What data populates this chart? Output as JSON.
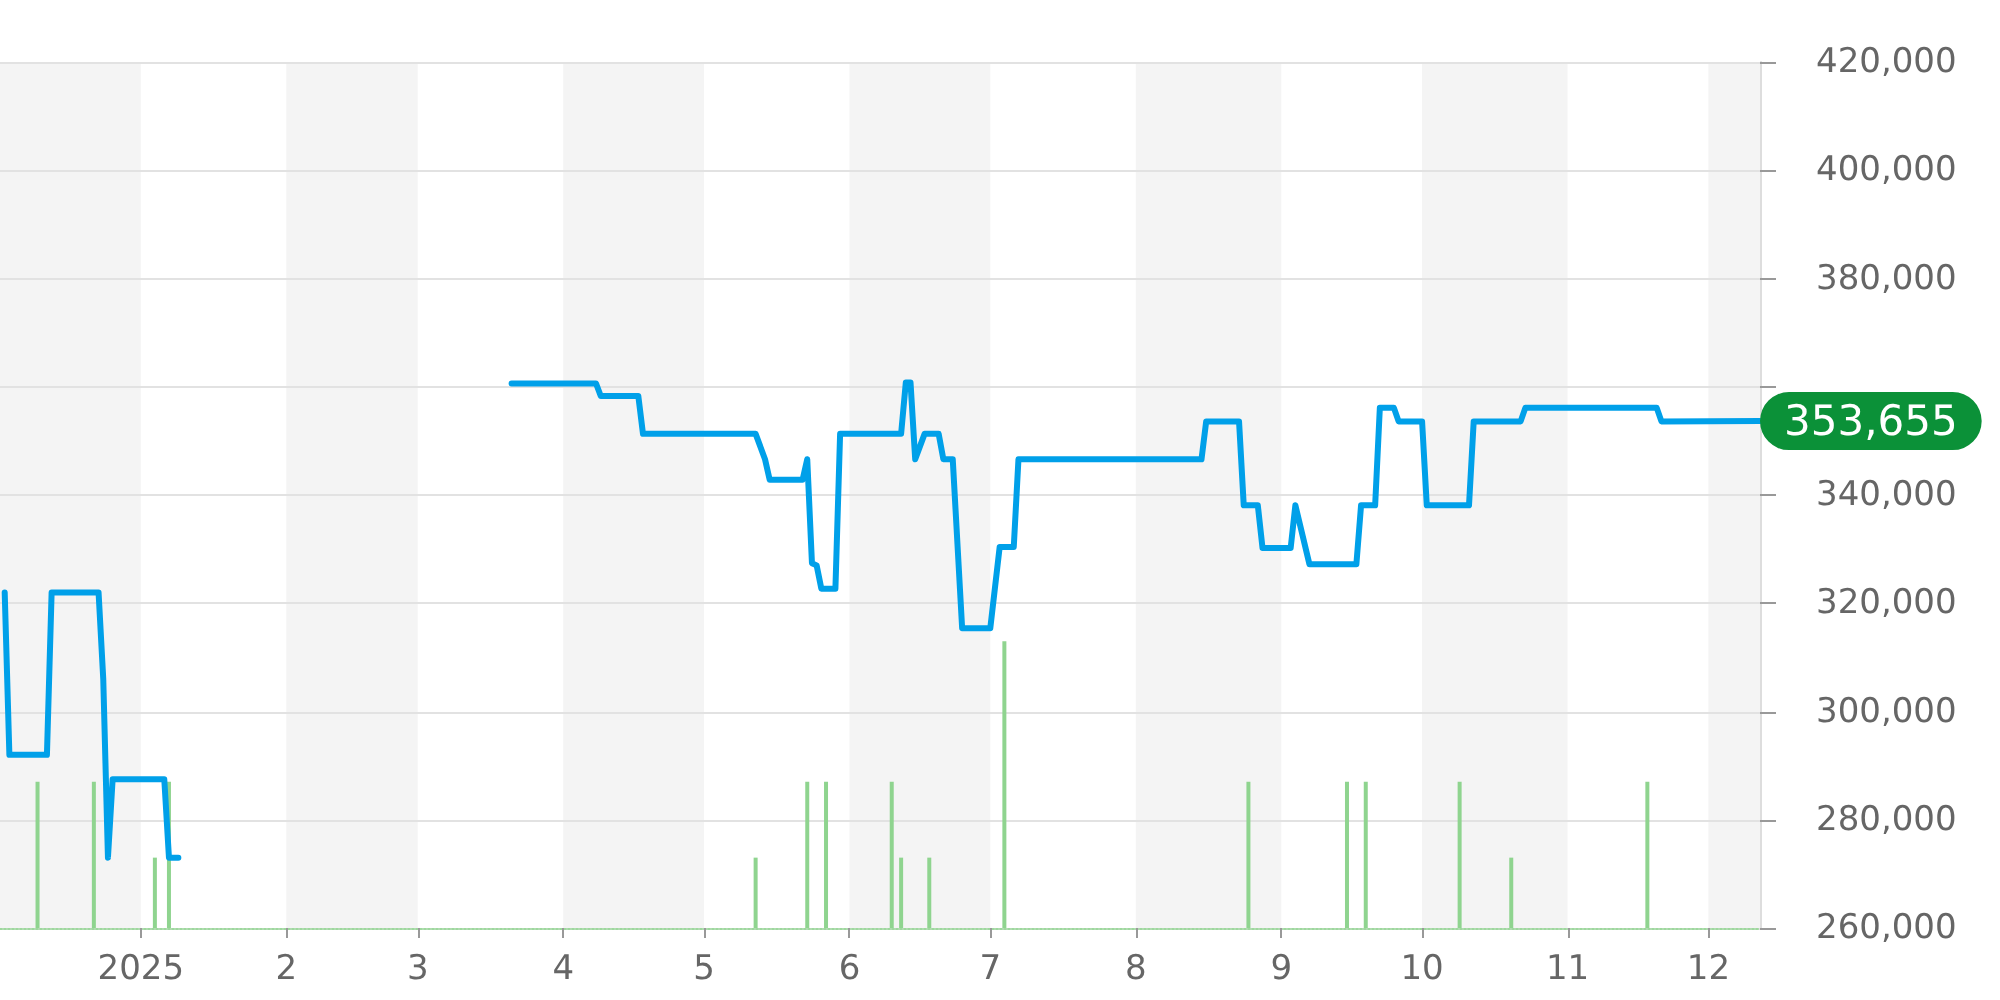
{
  "chart_data": {
    "type": "line",
    "xlim": [
      "2024-12-02",
      "2025-12-12"
    ],
    "xticks": [
      {
        "value": "2025-01-01",
        "label": "2025"
      },
      {
        "value": "2025-02-01",
        "label": "2"
      },
      {
        "value": "2025-03-01",
        "label": "3"
      },
      {
        "value": "2025-04-01",
        "label": "4"
      },
      {
        "value": "2025-05-01",
        "label": "5"
      },
      {
        "value": "2025-06-01",
        "label": "6"
      },
      {
        "value": "2025-07-01",
        "label": "7"
      },
      {
        "value": "2025-08-01",
        "label": "8"
      },
      {
        "value": "2025-09-01",
        "label": "9"
      },
      {
        "value": "2025-10-01",
        "label": "10"
      },
      {
        "value": "2025-11-01",
        "label": "11"
      },
      {
        "value": "2025-12-01",
        "label": "12"
      }
    ],
    "ylim": [
      260000,
      420000
    ],
    "yticks": [
      {
        "value": 260000,
        "label": "260,000"
      },
      {
        "value": 280000,
        "label": "280,000"
      },
      {
        "value": 300000,
        "label": "300,000"
      },
      {
        "value": 320000,
        "label": "320,000"
      },
      {
        "value": 340000,
        "label": "340,000"
      },
      {
        "value": 360000,
        "label": null
      },
      {
        "value": 380000,
        "label": "380,000"
      },
      {
        "value": 400000,
        "label": "400,000"
      },
      {
        "value": 420000,
        "label": "420,000"
      }
    ],
    "grid": "y",
    "marker": "none",
    "line_style": "solid",
    "bands": [
      {
        "axis": "x",
        "from": "2024-12-02",
        "to": "2025-01-01",
        "color": "#f4f4f4"
      },
      {
        "axis": "x",
        "from": "2025-02-01",
        "to": "2025-03-01",
        "color": "#f4f4f4"
      },
      {
        "axis": "x",
        "from": "2025-04-01",
        "to": "2025-05-01",
        "color": "#f4f4f4"
      },
      {
        "axis": "x",
        "from": "2025-06-01",
        "to": "2025-07-01",
        "color": "#f4f4f4"
      },
      {
        "axis": "x",
        "from": "2025-08-01",
        "to": "2025-09-01",
        "color": "#f4f4f4"
      },
      {
        "axis": "x",
        "from": "2025-10-01",
        "to": "2025-11-01",
        "color": "#f4f4f4"
      },
      {
        "axis": "x",
        "from": "2025-12-01",
        "to": "2025-12-12",
        "color": "#f4f4f4"
      }
    ],
    "series": [
      {
        "type": "bar",
        "color": "#8fd48f",
        "x": [
          "2024-12-10",
          "2024-12-22",
          "2025-01-04",
          "2025-01-07",
          "2025-05-12",
          "2025-05-23",
          "2025-05-27",
          "2025-06-10",
          "2025-06-12",
          "2025-06-18",
          "2025-07-04",
          "2025-08-25",
          "2025-09-15",
          "2025-09-19",
          "2025-10-09",
          "2025-10-20",
          "2025-11-18"
        ],
        "values": [
          287000,
          287000,
          273000,
          287000,
          273000,
          287000,
          287000,
          287000,
          273000,
          273000,
          313000,
          287000,
          287000,
          287000,
          287000,
          273000,
          287000
        ]
      },
      {
        "color": "#00a0e9",
        "x": [
          "2024-12-03",
          "2024-12-04",
          "2024-12-12",
          "2024-12-13",
          "2024-12-23",
          "2024-12-24",
          "2024-12-25",
          "2024-12-26",
          "2025-01-06",
          "2025-01-07",
          "2025-01-09",
          "2025-02-15",
          "2025-03-21",
          "2025-04-08",
          "2025-04-09",
          "2025-04-17",
          "2025-04-18",
          "2025-05-12",
          "2025-05-14",
          "2025-05-15",
          "2025-05-22",
          "2025-05-23",
          "2025-05-24",
          "2025-05-25",
          "2025-05-26",
          "2025-05-29",
          "2025-05-30",
          "2025-06-12",
          "2025-06-13",
          "2025-06-14",
          "2025-06-15",
          "2025-06-17",
          "2025-06-20",
          "2025-06-21",
          "2025-06-23",
          "2025-06-25",
          "2025-07-01",
          "2025-07-03",
          "2025-07-06",
          "2025-07-07",
          "2025-08-15",
          "2025-08-16",
          "2025-08-23",
          "2025-08-24",
          "2025-08-27",
          "2025-08-28",
          "2025-09-03",
          "2025-09-04",
          "2025-09-07",
          "2025-09-17",
          "2025-09-18",
          "2025-09-21",
          "2025-09-22",
          "2025-09-25",
          "2025-09-26",
          "2025-10-01",
          "2025-10-02",
          "2025-10-11",
          "2025-10-12",
          "2025-10-22",
          "2025-10-23",
          "2025-11-20",
          "2025-11-21",
          "2025-12-12"
        ],
        "values": [
          322000,
          292000,
          292000,
          322000,
          322000,
          306000,
          273000,
          287500,
          287500,
          273000,
          273000,
          null,
          360600,
          360600,
          358300,
          358300,
          351300,
          351300,
          346600,
          342800,
          342800,
          346600,
          327400,
          327000,
          322700,
          322700,
          351300,
          351300,
          360800,
          360800,
          346600,
          351300,
          351300,
          346600,
          346600,
          315400,
          315400,
          330400,
          330400,
          346600,
          346600,
          353600,
          353600,
          338100,
          338100,
          330200,
          330200,
          338100,
          327200,
          327200,
          338100,
          338100,
          356100,
          356100,
          353600,
          353600,
          338100,
          338100,
          353600,
          353600,
          356100,
          356100,
          353600,
          353655
        ],
        "value_labels": [
          null,
          null,
          null,
          null,
          null,
          null,
          null,
          null,
          null,
          null,
          null,
          null,
          null,
          null,
          null,
          null,
          null,
          null,
          null,
          null,
          null,
          null,
          null,
          null,
          null,
          null,
          null,
          null,
          null,
          null,
          null,
          null,
          null,
          null,
          null,
          null,
          null,
          null,
          null,
          null,
          null,
          null,
          null,
          null,
          null,
          null,
          null,
          null,
          null,
          null,
          null,
          null,
          null,
          null,
          null,
          null,
          null,
          null,
          null,
          null,
          null,
          null,
          null,
          "353,655"
        ]
      }
    ]
  }
}
